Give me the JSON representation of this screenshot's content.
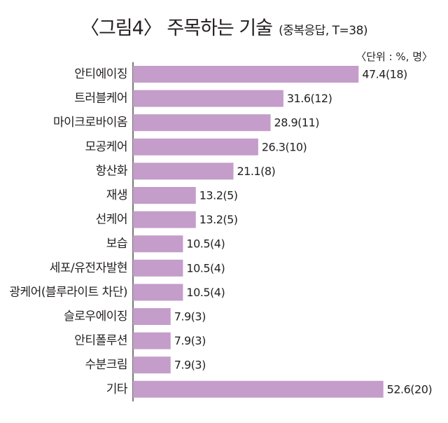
{
  "title": "〈그림4〉 주목하는 기술",
  "subtitle": "(중복응답, T=38)",
  "unit_note": "〈단위 : %, 명〉",
  "colors": {
    "bar": "#c49dca",
    "axis": "#231f20"
  },
  "chart_data": {
    "type": "bar",
    "orientation": "horizontal",
    "categories": [
      "안티에이징",
      "트러블케어",
      "마이크로바이옴",
      "모공케어",
      "항산화",
      "재생",
      "선케어",
      "보습",
      "세포/유전자발현",
      "광케어(블루라이트 차단)",
      "슬로우에이징",
      "안티폴루션",
      "수분크림",
      "기타"
    ],
    "values": [
      47.4,
      31.6,
      28.9,
      26.3,
      21.1,
      13.2,
      13.2,
      10.5,
      10.5,
      10.5,
      7.9,
      7.9,
      7.9,
      52.6
    ],
    "counts": [
      18,
      12,
      11,
      10,
      8,
      5,
      5,
      4,
      4,
      4,
      3,
      3,
      3,
      20
    ],
    "data_labels": [
      "47.4(18)",
      "31.6(12)",
      "28.9(11)",
      "26.3(10)",
      "21.1(8)",
      "13.2(5)",
      "13.2(5)",
      "10.5(4)",
      "10.5(4)",
      "10.5(4)",
      "7.9(3)",
      "7.9(3)",
      "7.9(3)",
      "52.6(20)"
    ],
    "xlim": [
      0,
      60
    ],
    "grid": false,
    "legend": "none"
  }
}
